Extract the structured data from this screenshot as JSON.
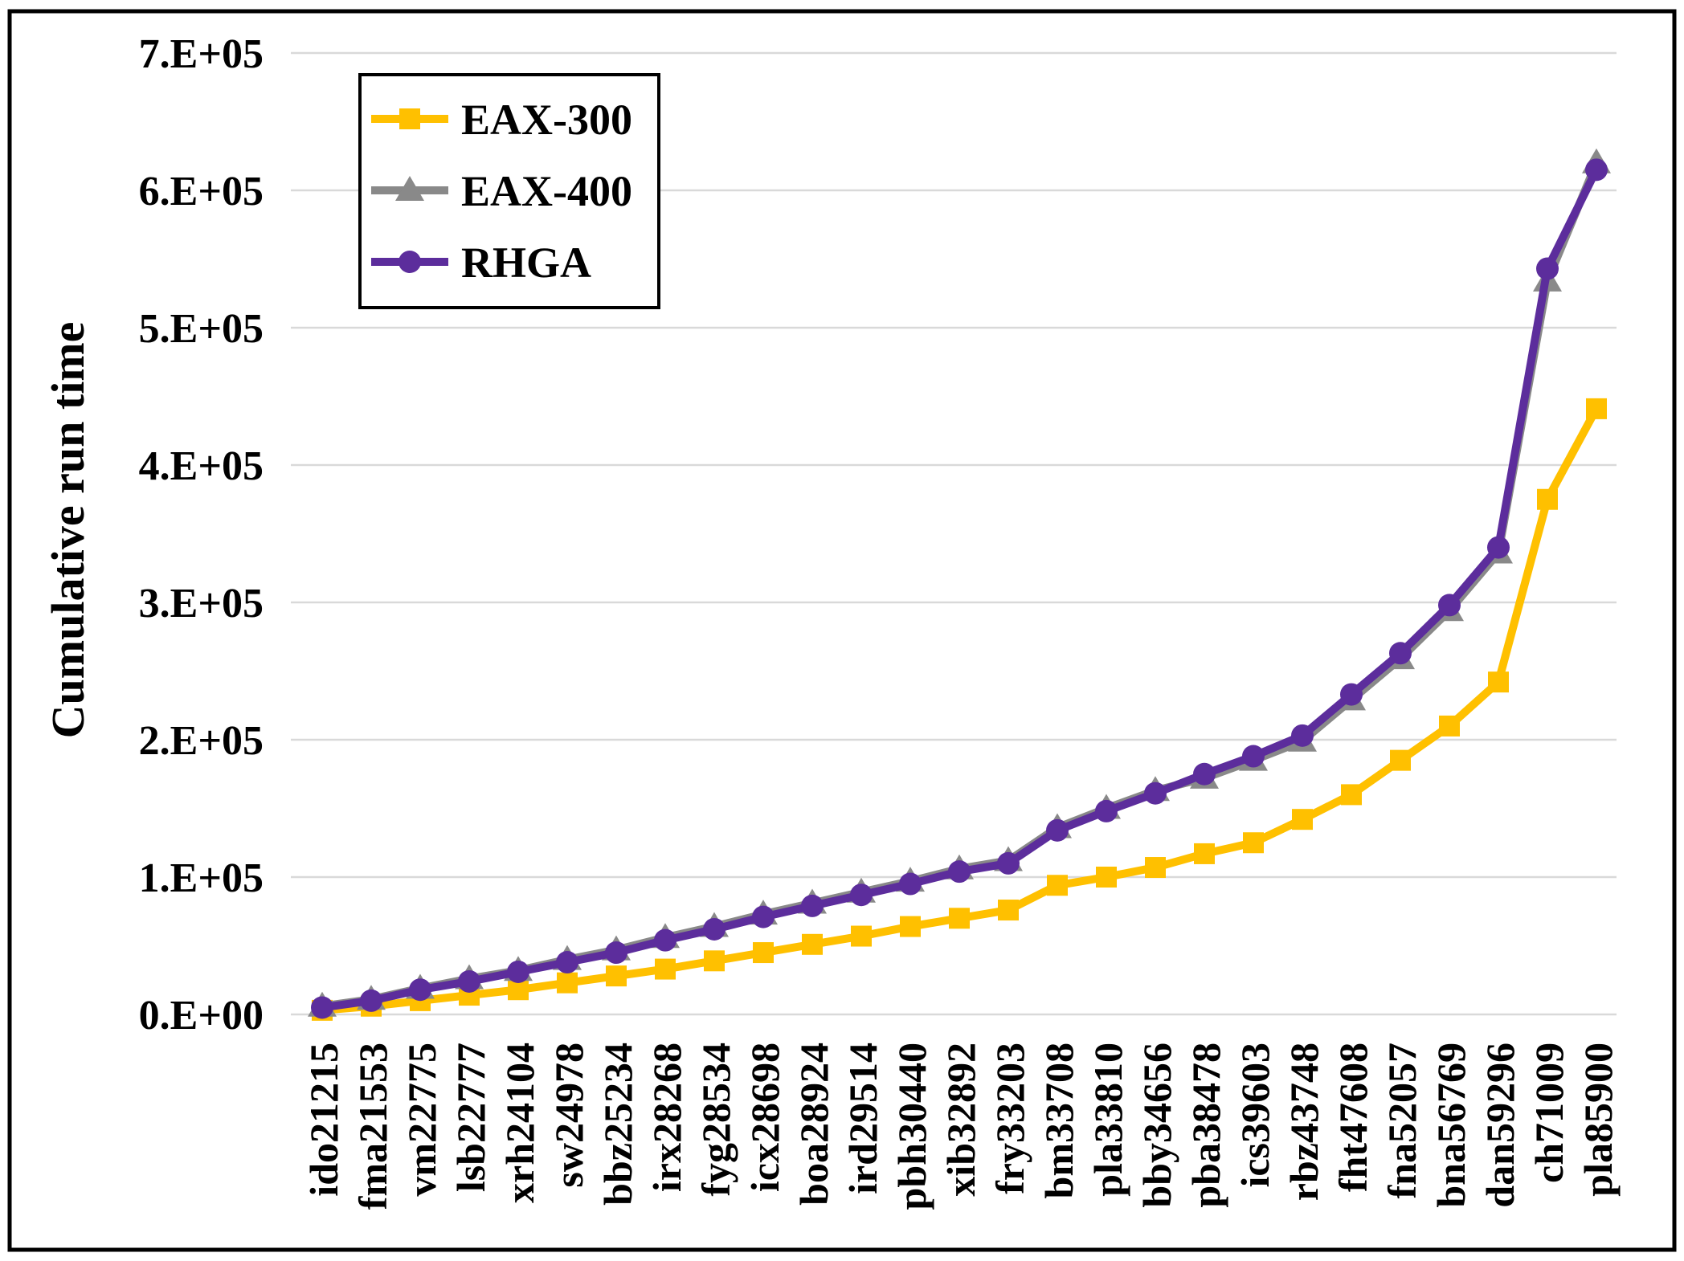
{
  "figure": {
    "background_color": "#FFFFFF",
    "border_color": "#000000"
  },
  "chart_data": {
    "type": "line",
    "title": "",
    "xlabel": "",
    "ylabel": "Cumulative run time",
    "ylim": [
      0,
      700000
    ],
    "y_tick_step": 100000,
    "y_tick_labels": [
      "0.E+00",
      "1.E+05",
      "2.E+05",
      "3.E+05",
      "4.E+05",
      "5.E+05",
      "6.E+05",
      "7.E+05"
    ],
    "x_tick_rotation": -90,
    "grid": "horizontal",
    "gridline_color": "#D9D9D9",
    "legend_position": "top-left",
    "legend_border_color": "#000000",
    "categories": [
      "ido21215",
      "fma21553",
      "vm22775",
      "lsb22777",
      "xrh24104",
      "sw24978",
      "bbz25234",
      "irx28268",
      "fyg28534",
      "icx28698",
      "boa28924",
      "ird29514",
      "pbh30440",
      "xib32892",
      "fry33203",
      "bm33708",
      "pla33810",
      "bby34656",
      "pba38478",
      "ics39603",
      "rbz43748",
      "fht47608",
      "fna52057",
      "bna56769",
      "dan59296",
      "ch71009",
      "pla85900"
    ],
    "series": [
      {
        "name": "EAX-300",
        "color": "#FFC000",
        "marker": "square",
        "values": [
          3000,
          6000,
          10000,
          14000,
          18000,
          23000,
          28000,
          33000,
          39000,
          45000,
          51000,
          57000,
          64000,
          70000,
          76000,
          94000,
          100000,
          107000,
          117000,
          125000,
          142000,
          160000,
          185000,
          210000,
          242000,
          375000,
          441000
        ]
      },
      {
        "name": "EAX-400",
        "color": "#898989",
        "marker": "triangle",
        "values": [
          6000,
          11000,
          19000,
          26000,
          32000,
          40000,
          47000,
          56000,
          64000,
          73000,
          81000,
          89000,
          97000,
          106000,
          112000,
          136000,
          150000,
          163000,
          172000,
          185000,
          199000,
          229000,
          259000,
          294000,
          336000,
          534000,
          620000
        ]
      },
      {
        "name": "RHGA",
        "color": "#5C2D9C",
        "marker": "circle",
        "values": [
          5000,
          10000,
          18000,
          24000,
          31000,
          38000,
          45000,
          54000,
          62000,
          71000,
          79000,
          87000,
          95000,
          104000,
          110000,
          134000,
          148000,
          161000,
          175000,
          188000,
          203000,
          233000,
          263000,
          298000,
          340000,
          543000,
          615000
        ]
      }
    ]
  }
}
